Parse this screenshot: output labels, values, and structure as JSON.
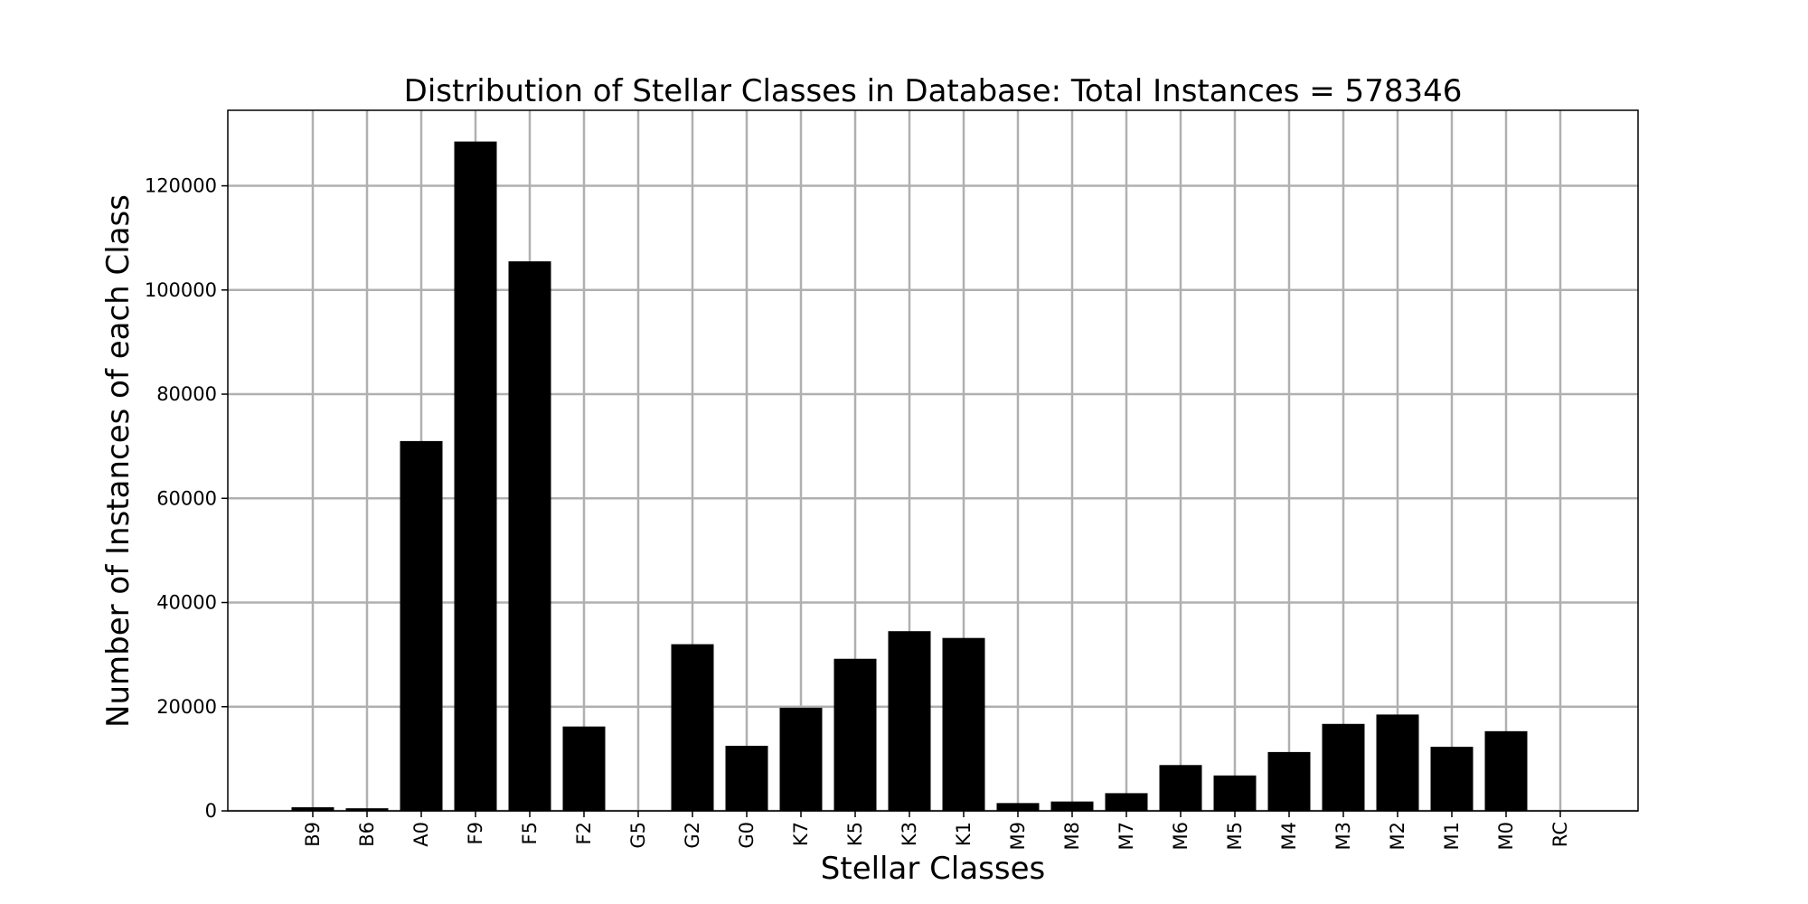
{
  "chart_data": {
    "type": "bar",
    "title": "Distribution of Stellar Classes in Database: Total Instances = 578346",
    "xlabel": "Stellar Classes",
    "ylabel": "Number of Instances of each Class",
    "categories": [
      "B9",
      "B6",
      "A0",
      "F9",
      "F5",
      "F2",
      "G5",
      "G2",
      "G0",
      "K7",
      "K5",
      "K3",
      "K1",
      "M9",
      "M8",
      "M7",
      "M6",
      "M5",
      "M4",
      "M3",
      "M2",
      "M1",
      "M0",
      "RC"
    ],
    "values": [
      700,
      500,
      71000,
      128500,
      105500,
      16200,
      0,
      32000,
      12500,
      19800,
      29200,
      34500,
      33200,
      1500,
      1800,
      3400,
      8800,
      6800,
      11300,
      16700,
      18500,
      12300,
      15300,
      0
    ],
    "ylim": [
      0,
      134500
    ],
    "yticks": [
      0,
      20000,
      40000,
      60000,
      80000,
      100000,
      120000
    ],
    "ytick_labels": [
      "0",
      "20000",
      "40000",
      "60000",
      "80000",
      "100000",
      "120000"
    ],
    "grid": true,
    "bar_color": "#000000",
    "grid_color": "#b0b0b0"
  }
}
